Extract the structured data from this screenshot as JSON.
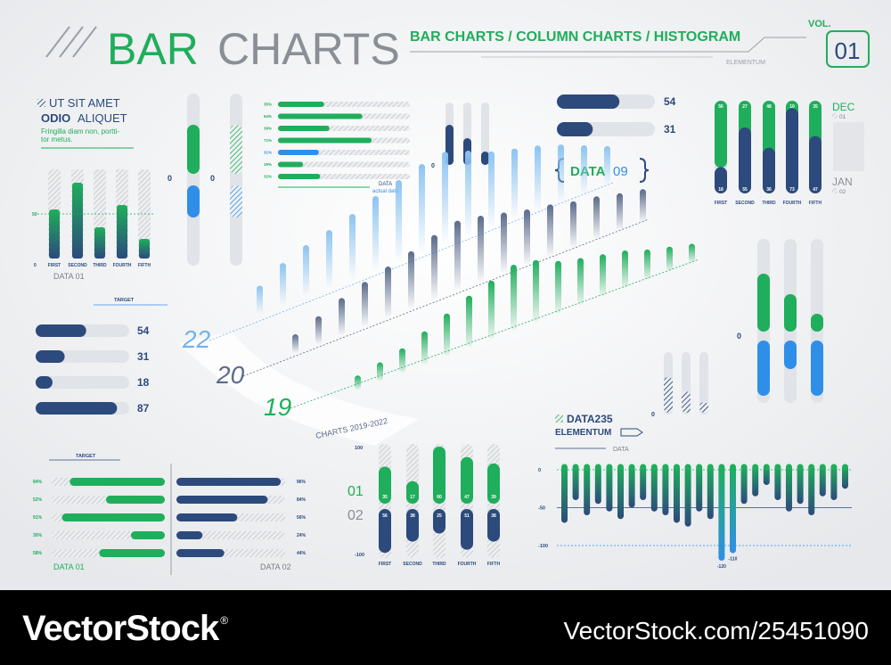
{
  "header": {
    "title_a": "BAR",
    "title_b": "CHARTS",
    "subtitle": "BAR CHARTS / COLUMN CHARTS / HISTOGRAM",
    "tag": "ELEMENTUM",
    "vol": "VOL.",
    "issue": "01"
  },
  "column_panel": {
    "heading1": "UT SIT AMET",
    "heading2a": "ODIO",
    "heading2b": "ALIQUET",
    "text1": "Fringilla diam non, portti-",
    "text2": "tor metus.",
    "categories": [
      "FIRST",
      "SECOND",
      "THIRD",
      "FOURTH",
      "FIFTH"
    ],
    "values": [
      55,
      85,
      35,
      60,
      22
    ],
    "zero": 0,
    "target": 50,
    "caption": "DATA 01"
  },
  "sliders": {
    "zero_labels": [
      0,
      0
    ]
  },
  "percent_bars": {
    "labels": [
      "35%",
      "64%",
      "39%",
      "71%",
      "31%",
      "19%",
      "32%"
    ],
    "values": [
      35,
      64,
      39,
      71,
      31,
      19,
      32
    ],
    "legend1": "DATA",
    "legend2": "actual data"
  },
  "mini_columns": {
    "zero": 0,
    "values": [
      45,
      30,
      15
    ]
  },
  "top_bars": {
    "values": [
      54,
      31
    ]
  },
  "badge": {
    "word": "DATA",
    "num": "09"
  },
  "split_columns": {
    "categories": [
      "FIRST",
      "SECOND",
      "THIRD",
      "FOURTH",
      "FIFTH"
    ],
    "top": [
      56,
      27,
      48,
      10,
      35
    ],
    "bottom": [
      18,
      55,
      36,
      73,
      47
    ],
    "months": [
      {
        "name": "DEC",
        "num": "01"
      },
      {
        "name": "JAN",
        "num": "02"
      }
    ]
  },
  "perspective": {
    "series": [
      {
        "name": "22",
        "values": [
          30,
          45,
          55,
          62,
          70,
          80,
          88,
          96,
          100,
          92,
          82,
          76,
          70,
          62,
          52,
          42
        ]
      },
      {
        "name": "20",
        "values": [
          20,
          30,
          40,
          48,
          55,
          62,
          70,
          76,
          72,
          66,
          60,
          56,
          50,
          46,
          40,
          35
        ]
      },
      {
        "name": "19",
        "values": [
          15,
          20,
          26,
          35,
          45,
          55,
          62,
          70,
          66,
          56,
          50,
          45,
          40,
          32,
          26,
          20
        ]
      }
    ],
    "caption": "CHARTS 2019-2022"
  },
  "target_bars": {
    "label": "TARGET",
    "values": [
      54,
      31,
      18,
      87
    ]
  },
  "dual_sliders": {
    "zero": 0,
    "up": [
      65,
      42,
      20
    ],
    "down": [
      62,
      32,
      62
    ]
  },
  "hatched_columns": {
    "zero": 0,
    "values": [
      40,
      24,
      12
    ]
  },
  "paired_bars": {
    "label": "TARGET",
    "left_labels": [
      "84%",
      "52%",
      "91%",
      "30%",
      "58%"
    ],
    "left_values": [
      84,
      52,
      91,
      30,
      58
    ],
    "right_labels": [
      "96%",
      "84%",
      "56%",
      "24%",
      "44%"
    ],
    "right_values": [
      96,
      84,
      56,
      24,
      44
    ],
    "caption_left": "DATA 01",
    "caption_right": "DATA 02"
  },
  "diverging_columns": {
    "axis": [
      100,
      -100
    ],
    "series_names": [
      "01",
      "02"
    ],
    "categories": [
      "FIRST",
      "SECOND",
      "THIRD",
      "FOURTH",
      "FIFTH"
    ],
    "up": [
      35,
      17,
      60,
      47,
      39
    ],
    "down": [
      56,
      38,
      25,
      51,
      38
    ]
  },
  "histogram": {
    "title": "DATA235",
    "subtitle": "ELEMENTUM",
    "legend": "DATA",
    "axis": [
      0,
      -50,
      -100
    ],
    "values": [
      -70,
      -40,
      -60,
      -45,
      -55,
      -65,
      -50,
      -40,
      -55,
      -60,
      -70,
      -75,
      -55,
      -65,
      -120,
      -110,
      -45,
      -35,
      -20,
      -40,
      -55,
      -45,
      -60,
      -35,
      -40,
      -25
    ]
  },
  "footer": {
    "brand": "VectorStock",
    "reg": "®",
    "url": "VectorStock.com/25451090"
  }
}
